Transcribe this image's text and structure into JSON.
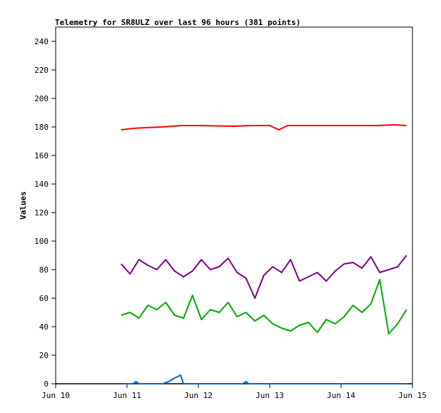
{
  "chart_data": {
    "type": "line",
    "title": "Telemetry for SR8ULZ over last 96 hours (381 points)",
    "xlabel": "",
    "ylabel": "Values",
    "xlim": [
      "Jun 10",
      "Jun 15"
    ],
    "ylim": [
      0,
      250
    ],
    "x_ticks": [
      "Jun 10",
      "Jun 11",
      "Jun 12",
      "Jun 13",
      "Jun 14",
      "Jun 15"
    ],
    "y_ticks": [
      0,
      20,
      40,
      60,
      80,
      100,
      120,
      140,
      160,
      180,
      200,
      220,
      240
    ],
    "grid": false,
    "legend": "none",
    "series": [
      {
        "color": "#ff0000",
        "x": [
          "Jun 10 22:00",
          "Jun 11 02:00",
          "Jun 11 06:00",
          "Jun 11 12:00",
          "Jun 11 18:00",
          "Jun 12 00:00",
          "Jun 12 12:00",
          "Jun 12 18:00",
          "Jun 13 00:00",
          "Jun 13 03:00",
          "Jun 13 06:00",
          "Jun 13 12:00",
          "Jun 13 18:00",
          "Jun 14 00:00",
          "Jun 14 12:00",
          "Jun 14 18:00",
          "Jun 14 22:00"
        ],
        "values": [
          178,
          179,
          179.5,
          180,
          181,
          181,
          180.5,
          181,
          181,
          178,
          181,
          181,
          181,
          181,
          181,
          181.5,
          181
        ]
      },
      {
        "color": "#800080",
        "x": [
          "Jun 10 22:00",
          "Jun 11 01:00",
          "Jun 11 04:00",
          "Jun 11 07:00",
          "Jun 11 10:00",
          "Jun 11 13:00",
          "Jun 11 16:00",
          "Jun 11 19:00",
          "Jun 11 22:00",
          "Jun 12 01:00",
          "Jun 12 04:00",
          "Jun 12 07:00",
          "Jun 12 10:00",
          "Jun 12 13:00",
          "Jun 12 16:00",
          "Jun 12 19:00",
          "Jun 12 22:00",
          "Jun 13 01:00",
          "Jun 13 04:00",
          "Jun 13 07:00",
          "Jun 13 10:00",
          "Jun 13 13:00",
          "Jun 13 16:00",
          "Jun 13 19:00",
          "Jun 13 22:00",
          "Jun 14 01:00",
          "Jun 14 04:00",
          "Jun 14 07:00",
          "Jun 14 10:00",
          "Jun 14 13:00",
          "Jun 14 16:00",
          "Jun 14 19:00",
          "Jun 14 22:00"
        ],
        "values": [
          84,
          77,
          87,
          83,
          80,
          87,
          79,
          75,
          79,
          87,
          80,
          82,
          88,
          78,
          74,
          60,
          76,
          82,
          78,
          87,
          72,
          75,
          78,
          72,
          79,
          84,
          85,
          81,
          89,
          78,
          80,
          82,
          90
        ]
      },
      {
        "color": "#00aa00",
        "x": [
          "Jun 10 22:00",
          "Jun 11 01:00",
          "Jun 11 04:00",
          "Jun 11 07:00",
          "Jun 11 10:00",
          "Jun 11 13:00",
          "Jun 11 16:00",
          "Jun 11 19:00",
          "Jun 11 22:00",
          "Jun 12 01:00",
          "Jun 12 04:00",
          "Jun 12 07:00",
          "Jun 12 10:00",
          "Jun 12 13:00",
          "Jun 12 16:00",
          "Jun 12 19:00",
          "Jun 12 22:00",
          "Jun 13 01:00",
          "Jun 13 04:00",
          "Jun 13 07:00",
          "Jun 13 10:00",
          "Jun 13 13:00",
          "Jun 13 16:00",
          "Jun 13 19:00",
          "Jun 13 22:00",
          "Jun 14 01:00",
          "Jun 14 04:00",
          "Jun 14 07:00",
          "Jun 14 10:00",
          "Jun 14 13:00",
          "Jun 14 16:00",
          "Jun 14 19:00",
          "Jun 14 22:00"
        ],
        "values": [
          48,
          50,
          46,
          55,
          52,
          57,
          48,
          46,
          62,
          45,
          52,
          50,
          57,
          47,
          50,
          44,
          48,
          42,
          39,
          37,
          41,
          43,
          36,
          45,
          42,
          47,
          55,
          50,
          56,
          73,
          35,
          42,
          52
        ]
      },
      {
        "color": "#0066cc",
        "x": [
          "Jun 10 22:00",
          "Jun 11 02:00",
          "Jun 11 03:00",
          "Jun 11 04:00",
          "Jun 11 12:00",
          "Jun 11 14:00",
          "Jun 11 16:00",
          "Jun 11 18:00",
          "Jun 11 19:00",
          "Jun 12 00:00",
          "Jun 12 12:00",
          "Jun 12 15:00",
          "Jun 12 16:00",
          "Jun 12 17:00",
          "Jun 13 00:00",
          "Jun 13 12:00",
          "Jun 14 22:00"
        ],
        "values": [
          0,
          0,
          1.5,
          0,
          0,
          1.5,
          4,
          6,
          0,
          0,
          0,
          0,
          1.5,
          0,
          0,
          0,
          0
        ]
      }
    ]
  }
}
